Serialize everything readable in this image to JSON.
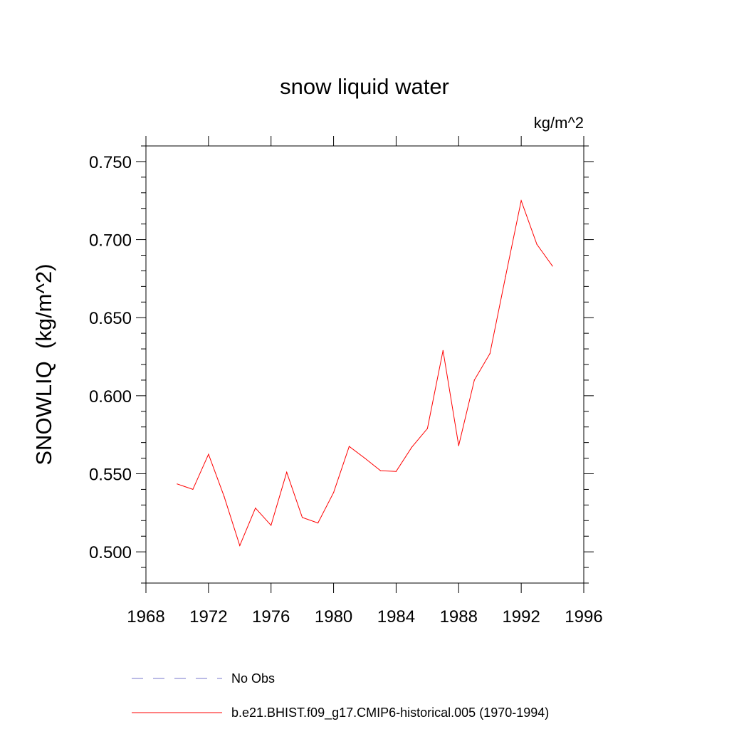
{
  "chart_data": {
    "type": "line",
    "title": "snow liquid water",
    "units_label": "kg/m^2",
    "xlabel": "",
    "ylabel": "SNOWLIQ  (kg/m^2)",
    "xlim": [
      1968,
      1996
    ],
    "ylim": [
      0.48,
      0.76
    ],
    "x_ticks": [
      1968,
      1972,
      1976,
      1980,
      1984,
      1988,
      1992,
      1996
    ],
    "x_tick_labels": [
      "1968",
      "1972",
      "1976",
      "1980",
      "1984",
      "1988",
      "1992",
      "1996"
    ],
    "y_ticks": [
      0.5,
      0.55,
      0.6,
      0.65,
      0.7,
      0.75
    ],
    "y_tick_labels": [
      "0.500",
      "0.550",
      "0.600",
      "0.650",
      "0.700",
      "0.750"
    ],
    "grid": false,
    "legend_position": "bottom",
    "series": [
      {
        "name": "b.e21.BHIST.f09_g17.CMIP6-historical.005 (1970-1994)",
        "color": "#ff0000",
        "style": "solid",
        "x": [
          1970,
          1971,
          1972,
          1973,
          1974,
          1975,
          1976,
          1977,
          1978,
          1979,
          1980,
          1981,
          1982,
          1983,
          1984,
          1985,
          1986,
          1987,
          1988,
          1989,
          1990,
          1991,
          1992,
          1993,
          1994
        ],
        "values": [
          0.5435,
          0.54,
          0.5625,
          0.5355,
          0.504,
          0.528,
          0.517,
          0.551,
          0.522,
          0.5185,
          0.538,
          0.5675,
          0.56,
          0.552,
          0.5515,
          0.567,
          0.579,
          0.629,
          0.568,
          0.61,
          0.627,
          0.6765,
          0.725,
          0.697,
          0.683
        ]
      }
    ],
    "legend": [
      {
        "label": "No Obs",
        "color": "#7777cc",
        "style": "dashed"
      },
      {
        "label": "b.e21.BHIST.f09_g17.CMIP6-historical.005 (1970-1994)",
        "color": "#ff0000",
        "style": "solid"
      }
    ]
  }
}
